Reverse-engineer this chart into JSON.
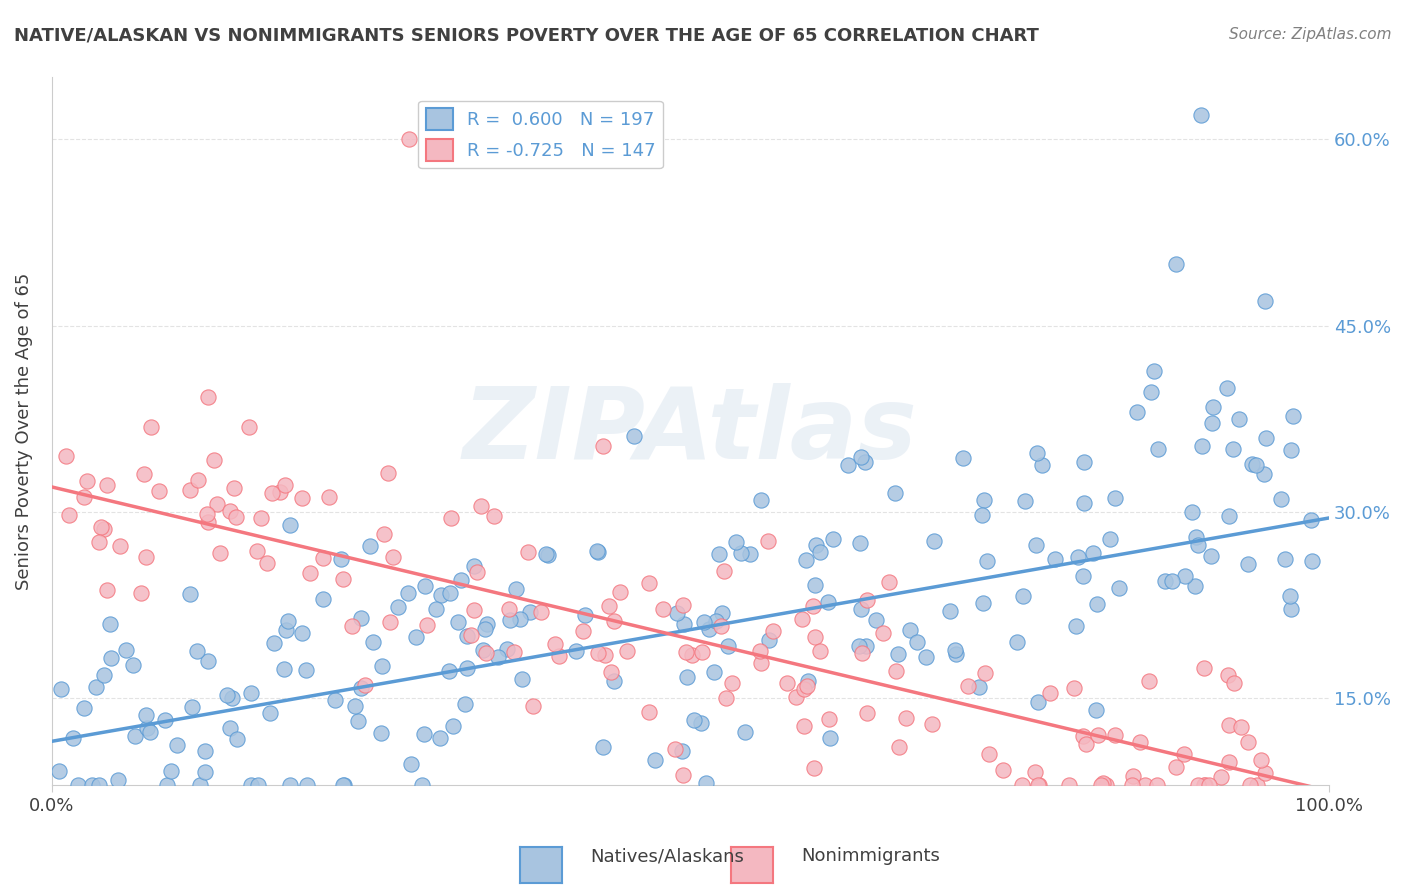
{
  "title": "NATIVE/ALASKAN VS NONIMMIGRANTS SENIORS POVERTY OVER THE AGE OF 65 CORRELATION CHART",
  "source": "Source: ZipAtlas.com",
  "ylabel": "Seniors Poverty Over the Age of 65",
  "xlabel": "",
  "xlim": [
    0,
    100
  ],
  "ylim": [
    8,
    65
  ],
  "xticks": [
    0,
    100
  ],
  "xtick_labels": [
    "0.0%",
    "100.0%"
  ],
  "ytick_labels": [
    "15.0%",
    "30.0%",
    "45.0%",
    "60.0%"
  ],
  "ytick_values": [
    15,
    30,
    45,
    60
  ],
  "blue_R": 0.6,
  "blue_N": 197,
  "pink_R": -0.725,
  "pink_N": 147,
  "blue_color": "#a8c4e0",
  "pink_color": "#f4b8c1",
  "blue_line_color": "#5b9bd5",
  "pink_line_color": "#f4777f",
  "legend_label_blue": "Natives/Alaskans",
  "legend_label_pink": "Nonimmigrants",
  "watermark": "ZIPAtlas",
  "background_color": "#ffffff",
  "grid_color": "#dddddd",
  "title_color": "#404040",
  "source_color": "#808080",
  "blue_trend_x0": 0,
  "blue_trend_y0": 11.5,
  "blue_trend_x1": 100,
  "blue_trend_y1": 29.5,
  "pink_trend_x0": 0,
  "pink_trend_y0": 32,
  "pink_trend_x1": 100,
  "pink_trend_y1": 7.5
}
